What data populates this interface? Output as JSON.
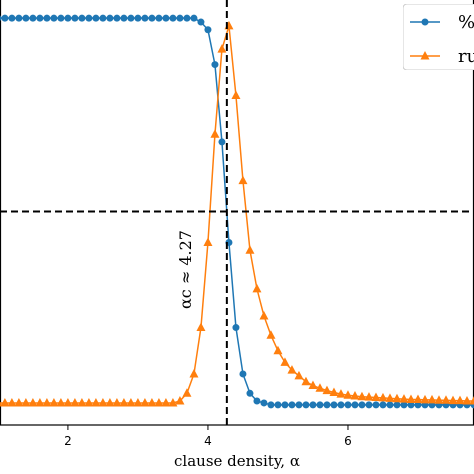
{
  "chart_data": {
    "type": "line",
    "x_label": "clause density, α",
    "annotation": "αc ≈ 4.27",
    "x": [
      1.0,
      1.1,
      1.2,
      1.3,
      1.4,
      1.5,
      1.6,
      1.7,
      1.8,
      1.9,
      2.0,
      2.1,
      2.2,
      2.3,
      2.4,
      2.5,
      2.6,
      2.7,
      2.8,
      2.9,
      3.0,
      3.1,
      3.2,
      3.3,
      3.4,
      3.5,
      3.6,
      3.7,
      3.8,
      3.9,
      4.0,
      4.1,
      4.2,
      4.3,
      4.4,
      4.5,
      4.6,
      4.7,
      4.8,
      4.9,
      5.0,
      5.1,
      5.2,
      5.3,
      5.4,
      5.5,
      5.6,
      5.7,
      5.8,
      5.9,
      6.0,
      6.1,
      6.2,
      6.3,
      6.4,
      6.5,
      6.6,
      6.7,
      6.8,
      6.9,
      7.0,
      7.1,
      7.2,
      7.3,
      7.4,
      7.5,
      7.6,
      7.7,
      7.8
    ],
    "series": [
      {
        "name": "%",
        "color": "#1f77b4",
        "marker": "circle",
        "values": [
          100,
          100,
          100,
          100,
          100,
          100,
          100,
          100,
          100,
          100,
          100,
          100,
          100,
          100,
          100,
          100,
          100,
          100,
          100,
          100,
          100,
          100,
          100,
          100,
          100,
          100,
          100,
          100,
          100,
          99,
          97,
          88,
          68,
          42,
          20,
          8,
          3,
          1,
          0.5,
          0,
          0,
          0,
          0,
          0,
          0,
          0,
          0,
          0,
          0,
          0,
          0,
          0,
          0,
          0,
          0,
          0,
          0,
          0,
          0,
          0,
          0,
          0,
          0,
          0,
          0,
          0,
          0,
          0,
          0
        ]
      },
      {
        "name": "ru",
        "color": "#ff7f0e",
        "marker": "triangle",
        "values": [
          0.5,
          0.5,
          0.5,
          0.5,
          0.5,
          0.5,
          0.5,
          0.5,
          0.5,
          0.5,
          0.5,
          0.5,
          0.5,
          0.5,
          0.5,
          0.5,
          0.5,
          0.5,
          0.5,
          0.5,
          0.5,
          0.5,
          0.5,
          0.5,
          0.5,
          0.5,
          1,
          3,
          8,
          20,
          42,
          70,
          92,
          98,
          80,
          58,
          40,
          30,
          23,
          18,
          14,
          11,
          9,
          7.5,
          6,
          5,
          4.3,
          3.7,
          3.2,
          2.8,
          2.5,
          2.3,
          2.1,
          2,
          1.9,
          1.8,
          1.7,
          1.6,
          1.5,
          1.4,
          1.4,
          1.3,
          1.3,
          1.2,
          1.2,
          1.1,
          1.1,
          1,
          1
        ]
      }
    ],
    "vline": 4.27,
    "hline": 50,
    "xlim": [
      1.03,
      7.8
    ],
    "ylim": [
      -5.2,
      104.7
    ],
    "xticks": [
      2,
      4,
      6
    ],
    "legend": "upper right"
  }
}
